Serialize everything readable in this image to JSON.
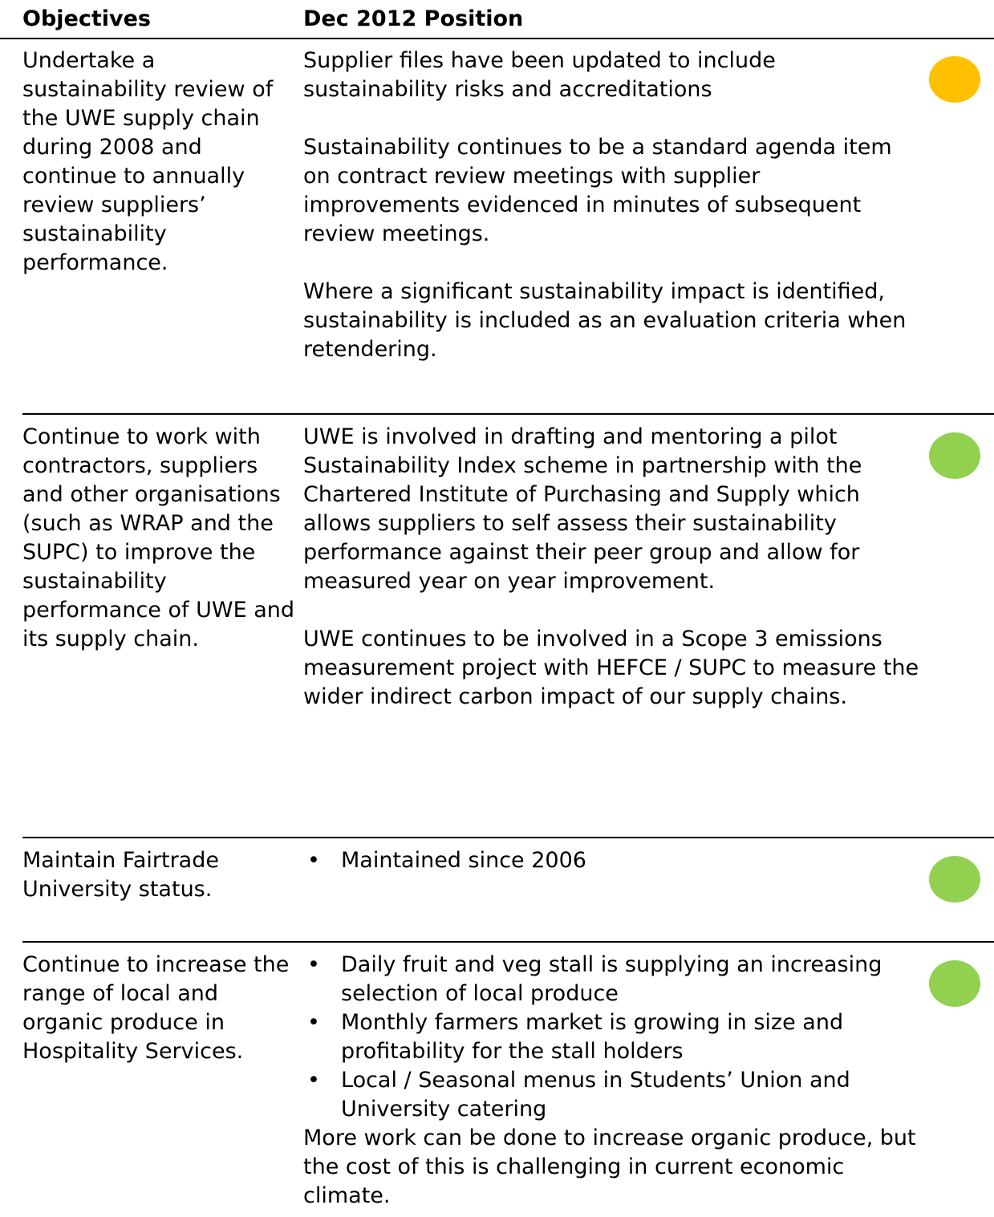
{
  "header": {
    "objectives": "Objectives",
    "position": "Dec 2012 Position"
  },
  "rows": [
    {
      "objective": "Undertake a sustainability review of the UWE supply chain during 2008 and continue to annually review suppliers’ sustainability performance.",
      "position": [
        {
          "text": "Supplier files have been updated to include sustainability risks and accreditations"
        },
        {
          "text": "Sustainability continues to be a standard agenda item on contract review meetings with supplier improvements evidenced in minutes of subsequent review meetings."
        },
        {
          "text": "Where a significant sustainability impact is identified, sustainability is included as an evaluation criteria when retendering."
        }
      ],
      "status_color": "#ffc000"
    },
    {
      "objective": "Continue to work with contractors, suppliers and other organisations (such as WRAP and the SUPC) to improve the sustainability performance of UWE and its supply chain.",
      "position": [
        {
          "text": "UWE is involved in drafting and mentoring a pilot Sustainability Index scheme in partnership with the Chartered Institute of Purchasing and Supply which allows suppliers to self assess their sustainability performance against their peer group and allow for measured year on year improvement."
        },
        {
          "text": "UWE continues to be involved in a Scope 3 emissions measurement project with HEFCE / SUPC to measure the wider indirect carbon impact of our supply chains."
        }
      ],
      "status_color": "#92d050"
    },
    {
      "objective": "Maintain Fairtrade University status.",
      "position": [
        {
          "bullets": [
            "Maintained since 2006"
          ]
        }
      ],
      "status_color": "#92d050"
    },
    {
      "objective": "Continue to increase the range of local and organic produce in Hospitality Services.",
      "position": [
        {
          "bullets": [
            "Daily fruit and veg stall is supplying an increasing selection of local produce",
            "Monthly farmers market is growing in size and profitability for the stall holders",
            "Local / Seasonal  menus in Students’ Union and University catering"
          ]
        },
        {
          "text": "More work can be done to increase organic produce, but the cost of this is challenging in current economic climate.",
          "tight": true
        }
      ],
      "status_color": "#92d050"
    }
  ]
}
